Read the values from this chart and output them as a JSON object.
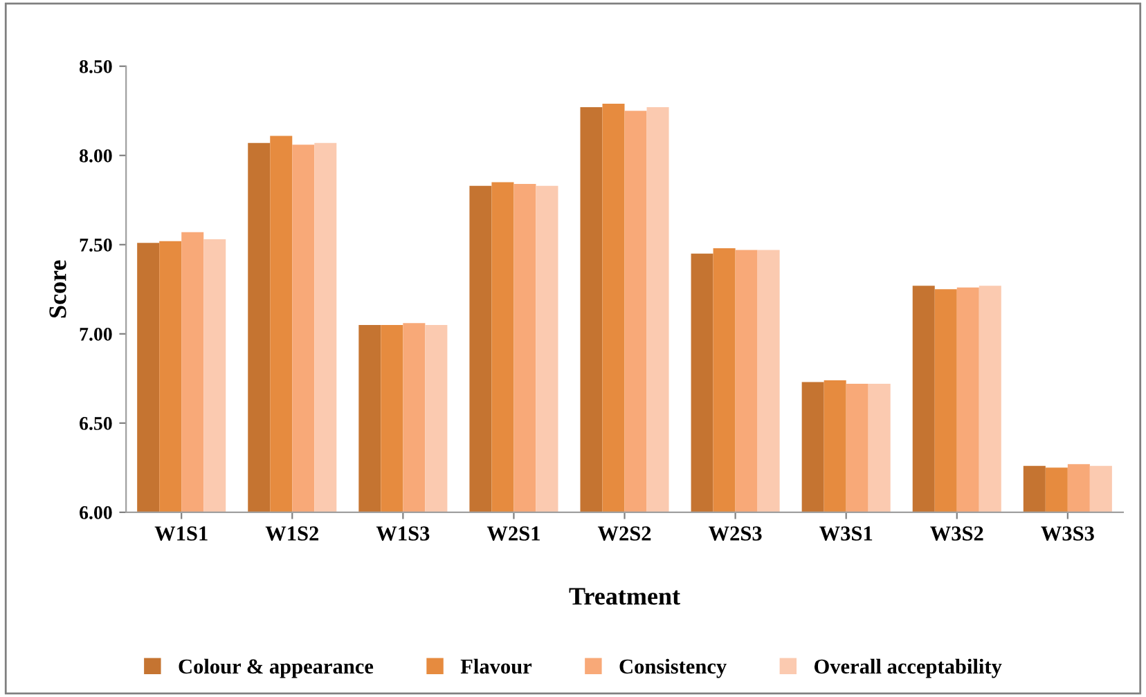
{
  "chart_data": {
    "type": "bar",
    "xlabel": "Treatment",
    "ylabel": "Score",
    "categories": [
      "W1S1",
      "W1S2",
      "W1S3",
      "W2S1",
      "W2S2",
      "W2S3",
      "W3S1",
      "W3S2",
      "W3S3"
    ],
    "series": [
      {
        "name": "Colour & appearance",
        "color": "#c57431",
        "values": [
          7.51,
          8.07,
          7.05,
          7.83,
          8.27,
          7.45,
          6.73,
          7.27,
          6.26
        ]
      },
      {
        "name": "Flavour",
        "color": "#e68b3f",
        "values": [
          7.52,
          8.11,
          7.05,
          7.85,
          8.29,
          7.48,
          6.74,
          7.25,
          6.25
        ]
      },
      {
        "name": "Consistency",
        "color": "#f8a978",
        "values": [
          7.57,
          8.06,
          7.06,
          7.84,
          8.25,
          7.47,
          6.72,
          7.26,
          6.27
        ]
      },
      {
        "name": "Overall acceptability",
        "color": "#fbcab0",
        "values": [
          7.53,
          8.07,
          7.05,
          7.83,
          8.27,
          7.47,
          6.72,
          7.27,
          6.26
        ]
      }
    ],
    "ylim": [
      6.0,
      8.5
    ],
    "yticks": [
      {
        "value": 6.0,
        "label": "6.00"
      },
      {
        "value": 6.5,
        "label": "6.50"
      },
      {
        "value": 7.0,
        "label": "7.00"
      },
      {
        "value": 7.5,
        "label": "7.50"
      },
      {
        "value": 8.0,
        "label": "8.00"
      },
      {
        "value": 8.5,
        "label": "8.50"
      }
    ],
    "grid": false,
    "legend": "bottom"
  }
}
